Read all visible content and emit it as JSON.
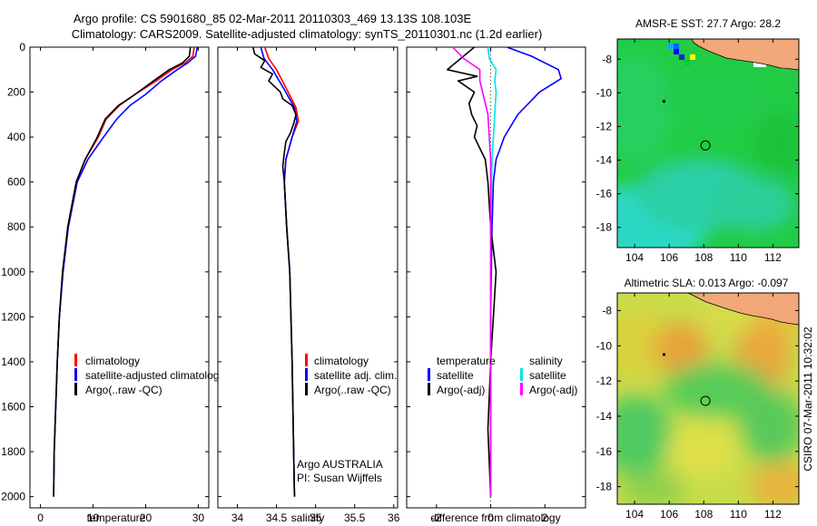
{
  "header": {
    "line1": "Argo profile: CS 5901680_85 02-Mar-2011 20110303_469 13.13S 108.103E",
    "line2": "Climatology: CARS2009. Satellite-adjusted climatology: synTS_20110301.nc (1.2d earlier)"
  },
  "side_stamp": "CSIRO 07-Mar-2011 10:32:02",
  "colors": {
    "climatology": "#ff0000",
    "satellite": "#0000ff",
    "argo": "#000000",
    "argo_adj_salinity": "#ff00ff",
    "satellite_salinity": "#00e5e5",
    "land": "#f2a878"
  },
  "chart_data": [
    {
      "type": "line",
      "panel": "temperature",
      "xlabel": "temperature",
      "ylabel": "",
      "xlim": [
        -2,
        32
      ],
      "ylim": [
        2050,
        0
      ],
      "x_ticks": [
        "0",
        "10",
        "20",
        "30"
      ],
      "y_ticks": [
        "0",
        "200",
        "400",
        "600",
        "800",
        "1000",
        "1200",
        "1400",
        "1600",
        "1800",
        "2000"
      ],
      "legend": [
        "climatology",
        "satellite-adjusted climatolog",
        "Argo(..raw -QC)"
      ],
      "series": [
        {
          "name": "climatology",
          "color": "red",
          "x": [
            29.2,
            29.0,
            27.5,
            25.0,
            22.0,
            18.0,
            15.0,
            12.5,
            11.0,
            8.5,
            6.8,
            5.2,
            4.2,
            3.6,
            3.2,
            2.9,
            2.6,
            2.5
          ],
          "y": [
            0,
            40,
            70,
            100,
            150,
            210,
            260,
            320,
            400,
            500,
            600,
            800,
            1000,
            1200,
            1400,
            1600,
            1800,
            2000
          ]
        },
        {
          "name": "satellite-adjusted climatolog",
          "color": "blue",
          "x": [
            29.8,
            29.5,
            28.0,
            26.0,
            23.0,
            20.0,
            17.0,
            14.5,
            12.0,
            9.0,
            7.0,
            5.3,
            4.3,
            3.6,
            3.2,
            2.9,
            2.6,
            2.5
          ],
          "y": [
            0,
            40,
            70,
            100,
            150,
            210,
            260,
            320,
            400,
            500,
            600,
            800,
            1000,
            1200,
            1400,
            1600,
            1800,
            2000
          ]
        },
        {
          "name": "Argo(..raw -QC)",
          "color": "black",
          "x": [
            28.5,
            28.3,
            27.0,
            24.5,
            21.5,
            18.0,
            14.8,
            12.3,
            10.8,
            8.5,
            6.8,
            5.2,
            4.2,
            3.6,
            3.2,
            2.9,
            2.6,
            2.5
          ],
          "y": [
            0,
            40,
            70,
            100,
            150,
            210,
            260,
            320,
            400,
            500,
            600,
            800,
            1000,
            1200,
            1400,
            1600,
            1800,
            2000
          ]
        }
      ]
    },
    {
      "type": "line",
      "panel": "salinity",
      "xlabel": "salinity",
      "xlim": [
        33.75,
        36.05
      ],
      "ylim": [
        2050,
        0
      ],
      "x_ticks": [
        "34",
        "34.5",
        "35",
        "35.5",
        "36"
      ],
      "legend": [
        "climatology",
        "satellite adj. clim.",
        "Argo(..raw -QC)"
      ],
      "annotations": [
        "Argo AUSTRALIA",
        "PI: Susan Wijffels"
      ],
      "series": [
        {
          "name": "climatology",
          "color": "red",
          "x": [
            34.35,
            34.4,
            34.5,
            34.65,
            34.75,
            34.78,
            34.7,
            34.62,
            34.6,
            34.63,
            34.67,
            34.7,
            34.72,
            34.73
          ],
          "y": [
            0,
            50,
            100,
            200,
            270,
            330,
            400,
            500,
            600,
            800,
            1000,
            1400,
            1800,
            2000
          ]
        },
        {
          "name": "satellite adj. clim.",
          "color": "blue",
          "x": [
            34.3,
            34.34,
            34.45,
            34.62,
            34.73,
            34.76,
            34.7,
            34.62,
            34.6,
            34.63,
            34.67,
            34.7,
            34.72,
            34.73
          ],
          "y": [
            0,
            50,
            100,
            200,
            270,
            330,
            400,
            500,
            600,
            800,
            1000,
            1400,
            1800,
            2000
          ]
        },
        {
          "name": "Argo(..raw -QC)",
          "color": "black",
          "x": [
            34.2,
            34.22,
            34.35,
            34.3,
            34.45,
            34.4,
            34.55,
            34.58,
            34.7,
            34.75,
            34.72,
            34.68,
            34.62,
            34.6,
            34.58,
            34.6,
            34.63,
            34.67,
            34.7,
            34.72,
            34.73
          ],
          "y": [
            0,
            30,
            60,
            90,
            120,
            150,
            200,
            230,
            260,
            300,
            340,
            380,
            420,
            470,
            530,
            600,
            800,
            1000,
            1400,
            1800,
            2000
          ]
        }
      ]
    },
    {
      "type": "line",
      "panel": "difference",
      "xlabel": "difference from climatology",
      "xlim": [
        -3.1,
        3.5
      ],
      "ylim": [
        2050,
        0
      ],
      "x_ticks": [
        "-2",
        "0",
        "2"
      ],
      "legend_left_title": "temperature",
      "legend_right_title": "salinity",
      "legend": [
        "satellite",
        "Argo(-adj)",
        "satellite",
        "Argo(-adj)"
      ],
      "series": [
        {
          "name": "satellite",
          "color": "blue",
          "group": "temperature",
          "x": [
            0.6,
            1.5,
            2.5,
            2.6,
            1.8,
            1.0,
            0.5,
            0.2,
            0.1,
            0.05,
            0.0,
            0.0
          ],
          "y": [
            0,
            40,
            100,
            140,
            200,
            300,
            400,
            500,
            600,
            800,
            1200,
            2000
          ]
        },
        {
          "name": "Argo(-adj)",
          "color": "black",
          "group": "temperature",
          "x": [
            -0.6,
            -1.1,
            -1.6,
            -0.5,
            -1.2,
            -0.6,
            -0.8,
            -0.7,
            -0.5,
            -0.6,
            -0.4,
            -0.2,
            -0.1,
            0.0,
            0.2,
            0.1,
            0.0,
            -0.1,
            0.0
          ],
          "y": [
            0,
            50,
            100,
            130,
            150,
            200,
            250,
            300,
            350,
            400,
            450,
            500,
            600,
            800,
            1000,
            1200,
            1400,
            1700,
            2000
          ]
        },
        {
          "name": "satellite",
          "color": "cyan",
          "group": "salinity",
          "x": [
            -0.1,
            -0.05,
            0.2,
            0.15,
            0.2,
            0.15,
            0.1,
            0.05,
            0.0,
            0.0
          ],
          "y": [
            0,
            50,
            100,
            150,
            200,
            300,
            400,
            500,
            800,
            2000
          ]
        },
        {
          "name": "Argo(-adj)",
          "color": "magenta",
          "group": "salinity",
          "x": [
            -1.4,
            -1.0,
            -0.4,
            -0.4,
            -0.3,
            -0.1,
            0.0,
            0.0
          ],
          "y": [
            0,
            50,
            100,
            150,
            200,
            300,
            500,
            2000
          ]
        }
      ]
    },
    {
      "type": "heatmap",
      "panel": "sst_map",
      "title": "AMSR-E SST: 27.7 Argo: 28.2",
      "xlim": [
        103,
        113.5
      ],
      "ylim": [
        -19.2,
        -6.8
      ],
      "x_ticks": [
        "104",
        "106",
        "108",
        "110",
        "112"
      ],
      "y_ticks": [
        "-8",
        "-10",
        "-12",
        "-14",
        "-16",
        "-18"
      ],
      "markers": [
        {
          "kind": "argo-position",
          "lon": 108.1,
          "lat": -13.13
        },
        {
          "kind": "dot",
          "lon": 105.7,
          "lat": -10.5
        }
      ]
    },
    {
      "type": "heatmap",
      "panel": "sla_map",
      "title": "Altimetric SLA: 0.013 Argo: -0.097",
      "xlim": [
        103,
        113.5
      ],
      "ylim": [
        -19,
        -7
      ],
      "x_ticks": [
        "104",
        "106",
        "108",
        "110",
        "112"
      ],
      "y_ticks": [
        "-8",
        "-10",
        "-12",
        "-14",
        "-16",
        "-18"
      ],
      "markers": [
        {
          "kind": "argo-position",
          "lon": 108.1,
          "lat": -13.13
        },
        {
          "kind": "dot",
          "lon": 105.7,
          "lat": -10.5
        }
      ]
    }
  ]
}
